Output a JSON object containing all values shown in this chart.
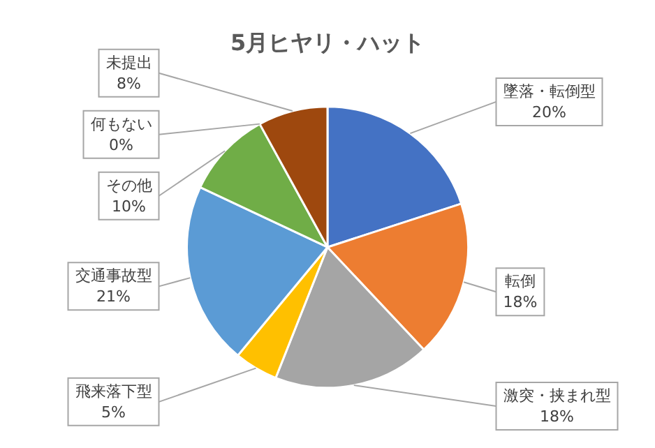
{
  "chart_data": {
    "type": "pie",
    "title": "5月ヒヤリ・ハット",
    "categories": [
      "墜落・転倒型",
      "転倒",
      "激突・挟まれ型",
      "飛来落下型",
      "交通事故型",
      "その他",
      "何もない",
      "未提出"
    ],
    "values": [
      20,
      18,
      18,
      5,
      21,
      10,
      0,
      8
    ],
    "colors": [
      "#4472c4",
      "#ed7d31",
      "#a5a5a5",
      "#ffc000",
      "#5b9bd5",
      "#70ad47",
      "#264478",
      "#9e480e"
    ],
    "value_labels": [
      "20%",
      "18%",
      "18%",
      "5%",
      "21%",
      "10%",
      "0%",
      "8%"
    ]
  }
}
